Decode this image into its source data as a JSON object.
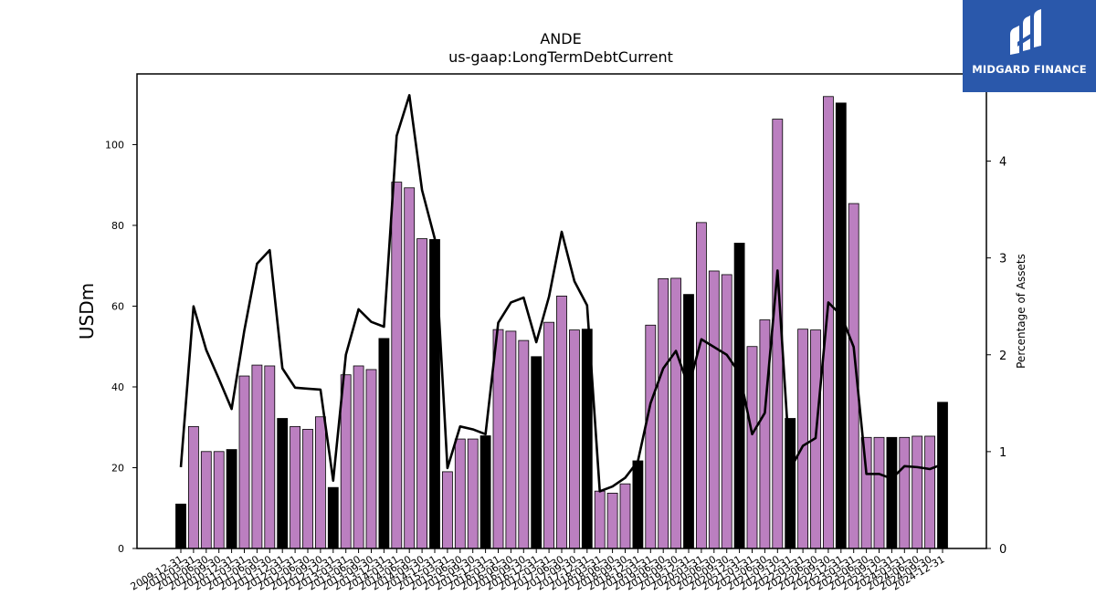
{
  "chart_data": {
    "type": "bar",
    "title": "ANDE",
    "subtitle": "us-gaap:LongTermDebtCurrent",
    "ylabel": "USDm",
    "y2label": "Percentage of Assets",
    "ylim": [
      0,
      117.5
    ],
    "y2lim": [
      0,
      4.9
    ],
    "yticks": [
      0,
      20,
      40,
      60,
      80,
      100
    ],
    "y2ticks": [
      0,
      1,
      2,
      3,
      4
    ],
    "categories": [
      "2009-12-31",
      "2010-03-31",
      "2010-06-30",
      "2010-09-30",
      "2010-12-31",
      "2011-03-31",
      "2011-06-30",
      "2011-09-30",
      "2011-12-31",
      "2012-03-31",
      "2012-06-30",
      "2012-09-30",
      "2012-12-31",
      "2013-03-31",
      "2013-06-30",
      "2013-09-30",
      "2013-12-31",
      "2014-03-31",
      "2014-06-30",
      "2014-09-30",
      "2014-12-31",
      "2015-03-31",
      "2015-06-30",
      "2015-09-30",
      "2015-12-31",
      "2016-03-31",
      "2016-06-30",
      "2016-09-30",
      "2016-12-31",
      "2017-03-31",
      "2017-06-30",
      "2017-09-30",
      "2017-12-31",
      "2018-03-31",
      "2018-06-30",
      "2018-09-30",
      "2018-12-31",
      "2019-03-31",
      "2019-06-30",
      "2019-09-30",
      "2019-12-31",
      "2020-03-31",
      "2020-06-30",
      "2020-09-30",
      "2020-12-31",
      "2021-03-31",
      "2021-06-30",
      "2021-09-30",
      "2021-12-31",
      "2022-03-31",
      "2022-06-30",
      "2022-09-30",
      "2022-12-31",
      "2023-03-31",
      "2023-06-30",
      "2023-09-30",
      "2023-12-31",
      "2024-03-31",
      "2024-06-30",
      "2024-09-30",
      "2024-12-31"
    ],
    "values": [
      11,
      30.2,
      24,
      24,
      24.5,
      42.7,
      45.4,
      45.2,
      32.2,
      30.2,
      29.5,
      32.6,
      15.1,
      43,
      45.2,
      44.3,
      52,
      90.7,
      89.3,
      76.7,
      76.5,
      19,
      27.1,
      27.1,
      27.9,
      54.2,
      53.8,
      51.5,
      47.5,
      56,
      62.5,
      54.1,
      54.3,
      14.2,
      13.7,
      16,
      21.7,
      55.3,
      66.8,
      66.9,
      62.9,
      80.7,
      68.7,
      67.8,
      75.6,
      50,
      56.6,
      106.3,
      32.2,
      54.3,
      54.1,
      111.9,
      110.3,
      85.4,
      27.5,
      27.5,
      27.5,
      27.5,
      27.8,
      27.8,
      36.2
    ],
    "line": {
      "axis": "right",
      "values": [
        0.84,
        2.5,
        2.05,
        1.75,
        1.44,
        2.25,
        2.94,
        3.08,
        1.86,
        1.66,
        1.65,
        1.64,
        0.7,
        2.0,
        2.47,
        2.34,
        2.29,
        4.26,
        4.68,
        3.7,
        3.2,
        0.83,
        1.26,
        1.23,
        1.18,
        2.33,
        2.54,
        2.59,
        2.13,
        2.6,
        3.27,
        2.76,
        2.51,
        0.59,
        0.64,
        0.73,
        0.9,
        1.5,
        1.86,
        2.04,
        1.67,
        2.16,
        2.08,
        2.0,
        1.81,
        1.18,
        1.4,
        2.87,
        0.82,
        1.06,
        1.14,
        2.54,
        2.41,
        2.08,
        0.77,
        0.77,
        0.72,
        0.85,
        0.84,
        0.82,
        0.87
      ]
    },
    "colors": {
      "bar": "#bb7fc0",
      "bar_highlight": "#000000",
      "line": "#000000"
    },
    "highlight_every": 4,
    "grid": false,
    "legend": "none"
  },
  "logo": {
    "text": "MIDGARD FINANCE",
    "icon": "midgard-logo-icon"
  }
}
